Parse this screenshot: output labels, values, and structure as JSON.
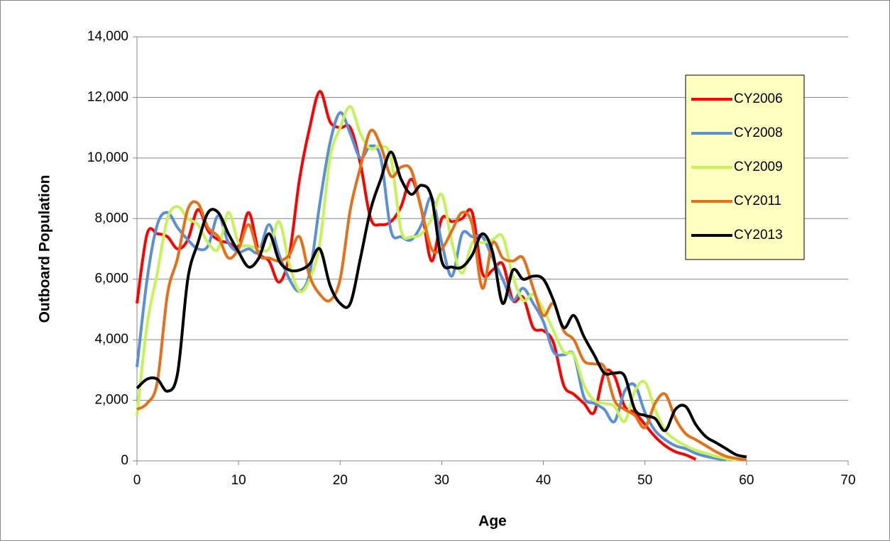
{
  "chart_data": {
    "type": "line",
    "x_label": "Age",
    "y_label": "Outboard Population",
    "x": [
      0,
      1,
      2,
      3,
      4,
      5,
      6,
      7,
      8,
      9,
      10,
      11,
      12,
      13,
      14,
      15,
      16,
      17,
      18,
      19,
      20,
      21,
      22,
      23,
      24,
      25,
      26,
      27,
      28,
      29,
      30,
      31,
      32,
      33,
      34,
      35,
      36,
      37,
      38,
      39,
      40,
      41,
      42,
      43,
      44,
      45,
      46,
      47,
      48,
      49,
      50,
      51,
      52,
      53,
      54,
      55,
      56,
      57,
      58,
      59,
      60
    ],
    "series": [
      {
        "name": "CY2006",
        "color": "#ff0000",
        "values": [
          5200,
          7500,
          7500,
          7400,
          7000,
          7300,
          8300,
          7600,
          7300,
          7200,
          7100,
          8200,
          6900,
          6600,
          5900,
          6800,
          9300,
          11000,
          12200,
          11200,
          11000,
          11000,
          9800,
          8000,
          7800,
          7900,
          8400,
          9300,
          8300,
          6600,
          8000,
          7900,
          8000,
          8200,
          6200,
          6300,
          6500,
          5300,
          5400,
          4400,
          4300,
          3900,
          2500,
          2200,
          1900,
          1600,
          2900,
          2800,
          1800,
          1600,
          1200,
          800,
          500,
          300,
          200,
          50,
          null,
          null,
          null,
          null,
          null
        ]
      },
      {
        "name": "CY2008",
        "color": "#5b8fd6",
        "values": [
          3100,
          6000,
          7800,
          8200,
          7700,
          7300,
          7000,
          7100,
          8100,
          7200,
          6900,
          7000,
          6900,
          7800,
          6800,
          6000,
          5600,
          6200,
          8500,
          10500,
          11500,
          10800,
          10000,
          10400,
          10000,
          7600,
          7400,
          7300,
          7800,
          8700,
          7200,
          6100,
          7500,
          7400,
          7400,
          6700,
          6000,
          5300,
          5700,
          5200,
          4600,
          3600,
          3500,
          3500,
          2100,
          1900,
          1700,
          1300,
          2300,
          2500,
          1600,
          1000,
          700,
          500,
          400,
          250,
          150,
          80,
          30,
          null,
          null
        ]
      },
      {
        "name": "CY2009",
        "color": "#c6f25a",
        "values": [
          1500,
          4500,
          6200,
          8000,
          8400,
          8000,
          7800,
          7200,
          7000,
          8200,
          7200,
          7100,
          7000,
          7000,
          7900,
          6500,
          5600,
          6000,
          7200,
          10000,
          11000,
          11700,
          10800,
          10300,
          10400,
          10000,
          7600,
          7400,
          7500,
          8000,
          8800,
          7200,
          6200,
          7200,
          7200,
          7300,
          7400,
          6100,
          5300,
          5500,
          5000,
          4300,
          3600,
          3500,
          2500,
          2000,
          1900,
          1800,
          1300,
          2300,
          2600,
          1700,
          1000,
          700,
          500,
          350,
          250,
          150,
          80,
          20,
          null
        ]
      },
      {
        "name": "CY2011",
        "color": "#e3711b",
        "values": [
          1700,
          1900,
          2600,
          5500,
          6700,
          8300,
          8500,
          7700,
          7400,
          6700,
          7000,
          7800,
          6800,
          6700,
          6600,
          6800,
          7400,
          6100,
          5500,
          5300,
          6000,
          8300,
          9700,
          10900,
          10400,
          9400,
          9700,
          9600,
          8300,
          7000,
          7000,
          7600,
          8200,
          7800,
          5700,
          7200,
          6700,
          6600,
          6700,
          5700,
          4800,
          5200,
          4300,
          4000,
          3300,
          3200,
          3100,
          2000,
          1700,
          1500,
          1100,
          1900,
          2200,
          1400,
          900,
          700,
          500,
          300,
          150,
          80,
          30
        ]
      },
      {
        "name": "CY2013",
        "color": "#000000",
        "values": [
          2400,
          2700,
          2700,
          2300,
          2900,
          6000,
          7200,
          8200,
          8200,
          7500,
          6900,
          6400,
          6700,
          7500,
          6600,
          6300,
          6300,
          6500,
          7000,
          5800,
          5200,
          5200,
          6700,
          8300,
          9300,
          10200,
          9300,
          8800,
          9100,
          8700,
          6600,
          6400,
          6400,
          6800,
          7500,
          6900,
          5200,
          6300,
          6000,
          6100,
          6000,
          5300,
          4400,
          4800,
          4100,
          3500,
          2900,
          2900,
          2800,
          1700,
          1500,
          1400,
          1000,
          1700,
          1800,
          1200,
          800,
          600,
          400,
          200,
          130
        ]
      }
    ],
    "xlim": [
      0,
      70
    ],
    "xticks": [
      0,
      10,
      20,
      30,
      40,
      50,
      60,
      70
    ],
    "ylim": [
      0,
      14000
    ],
    "yticks": [
      0,
      {
        "value": 2000,
        "label": "2,000"
      },
      {
        "value": 4000,
        "label": "4,000"
      },
      {
        "value": 6000,
        "label": "6,000"
      },
      {
        "value": 8000,
        "label": "8,000"
      },
      {
        "value": 10000,
        "label": "10,000"
      },
      {
        "value": 12000,
        "label": "12,000"
      },
      {
        "value": 14000,
        "label": "14,000"
      }
    ],
    "grid": true,
    "legend": "right"
  }
}
